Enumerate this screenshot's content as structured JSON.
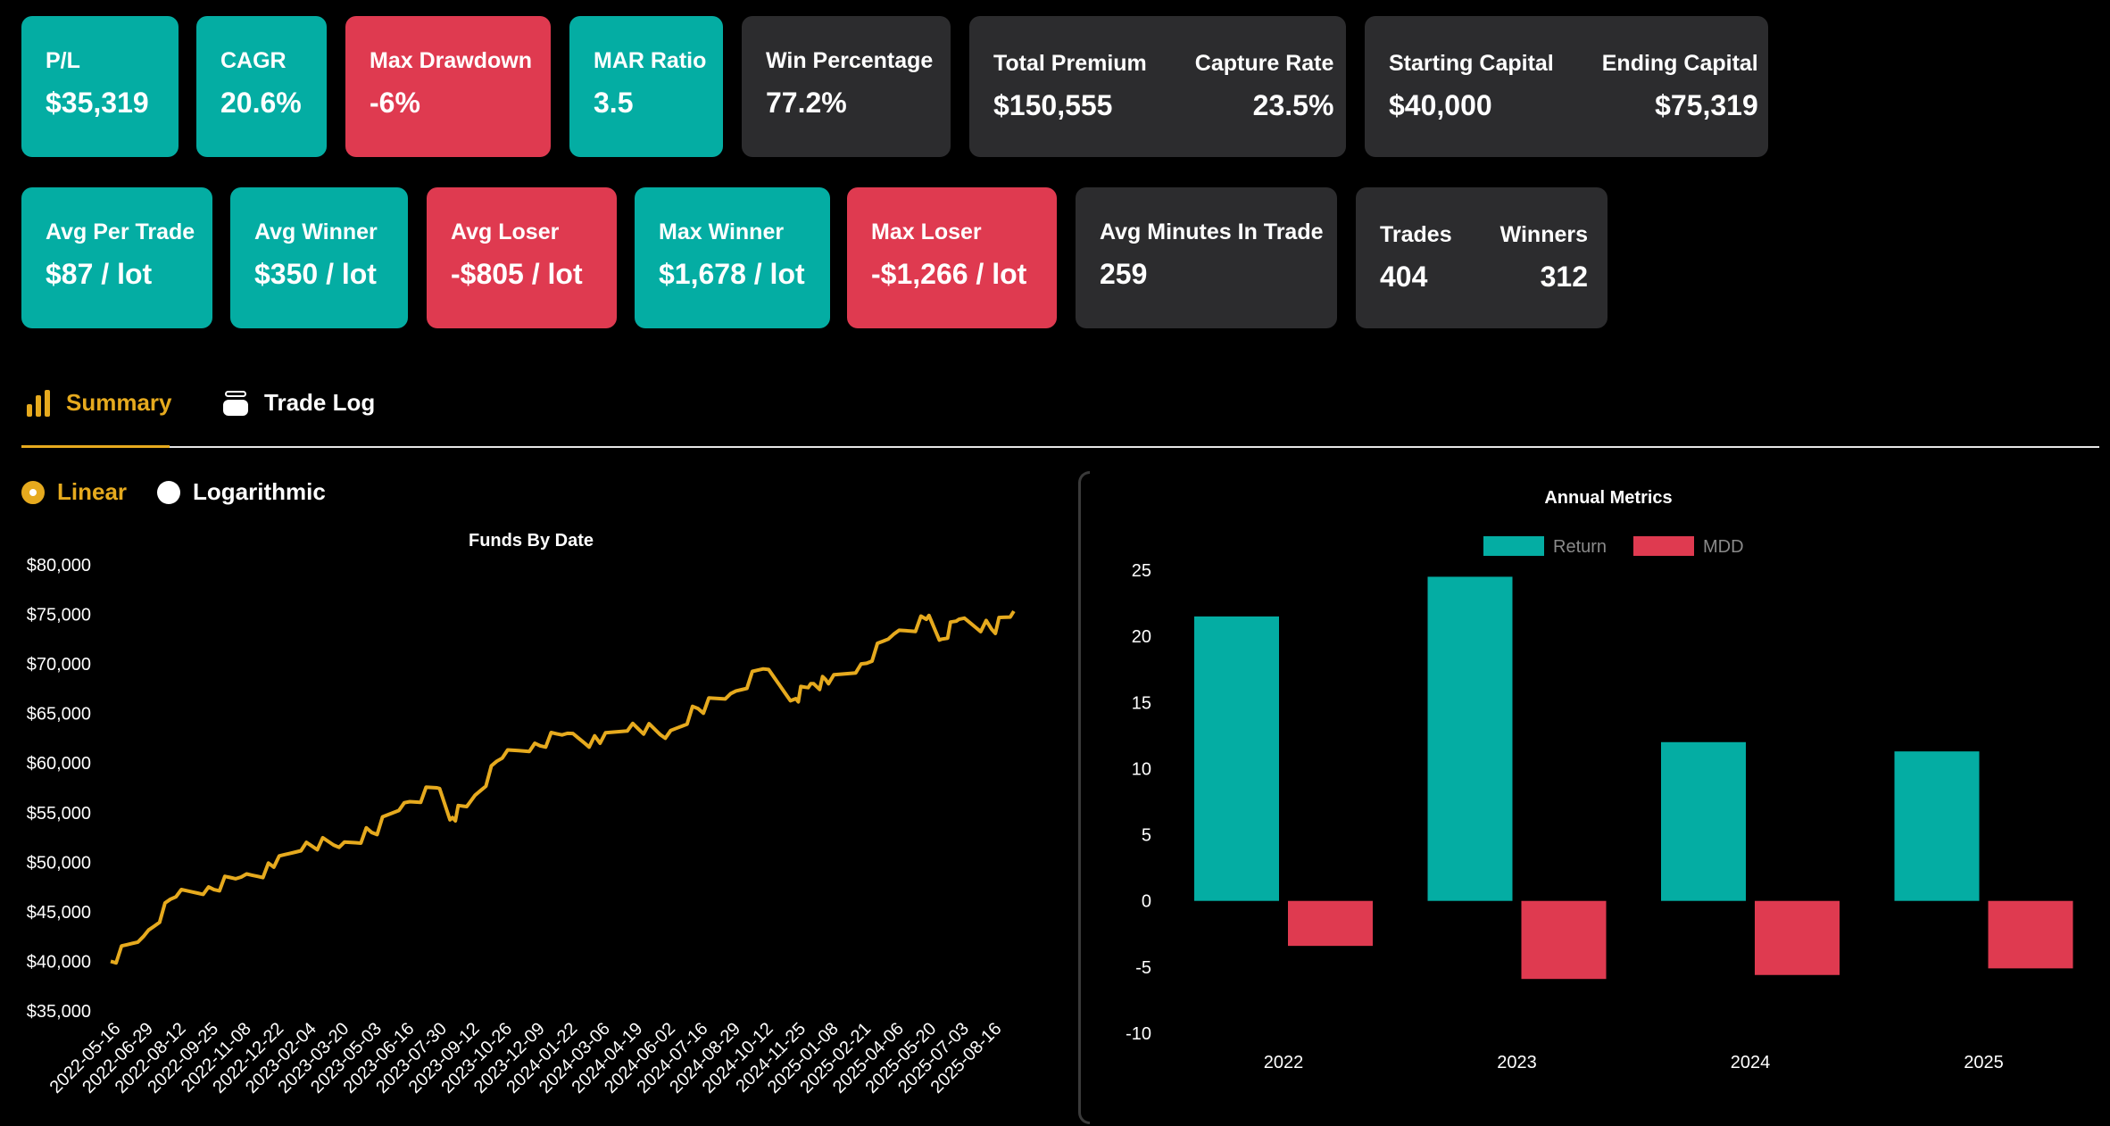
{
  "stats_row1": [
    {
      "label": "P/L",
      "value": "$35,319",
      "color": "#04ada3"
    },
    {
      "label": "CAGR",
      "value": "20.6%",
      "color": "#04ada3"
    },
    {
      "label": "Max Drawdown",
      "value": "-6%",
      "color": "#df3a50"
    },
    {
      "label": "MAR Ratio",
      "value": "3.5",
      "color": "#04ada3"
    },
    {
      "label": "Win Percentage",
      "value": "77.2%",
      "color": "#2c2c2e"
    }
  ],
  "split_cards": {
    "premium": {
      "left_label": "Total Premium",
      "left_value": "$150,555",
      "right_label": "Capture Rate",
      "right_value": "23.5%"
    },
    "capital": {
      "left_label": "Starting Capital",
      "left_value": "$40,000",
      "right_label": "Ending Capital",
      "right_value": "$75,319"
    },
    "trades": {
      "left_label": "Trades",
      "left_value": "404",
      "right_label": "Winners",
      "right_value": "312"
    }
  },
  "stats_row2": [
    {
      "label": "Avg Per Trade",
      "value": "$87 / lot",
      "color": "#04ada3"
    },
    {
      "label": "Avg Winner",
      "value": "$350 / lot",
      "color": "#04ada3"
    },
    {
      "label": "Avg Loser",
      "value": "-$805 / lot",
      "color": "#df3a50"
    },
    {
      "label": "Max Winner",
      "value": "$1,678 / lot",
      "color": "#04ada3"
    },
    {
      "label": "Max Loser",
      "value": "-$1,266 / lot",
      "color": "#df3a50"
    },
    {
      "label": "Avg Minutes In Trade",
      "value": "259",
      "color": "#2c2c2e"
    }
  ],
  "tabs": [
    {
      "label": "Summary",
      "icon": "bar-chart-icon",
      "active": true
    },
    {
      "label": "Trade Log",
      "icon": "coin-stack-icon",
      "active": false
    }
  ],
  "scale_options": [
    {
      "label": "Linear",
      "selected": true
    },
    {
      "label": "Logarithmic",
      "selected": false
    }
  ],
  "chart_data": [
    {
      "type": "line",
      "title": "Funds By Date",
      "color": "#e6aa1e",
      "ylim": [
        35000,
        80000
      ],
      "y_ticks": [
        "$35,000",
        "$40,000",
        "$45,000",
        "$50,000",
        "$55,000",
        "$60,000",
        "$65,000",
        "$70,000",
        "$75,000",
        "$80,000"
      ],
      "x_ticks": [
        "2022-05-16",
        "2022-06-29",
        "2022-08-12",
        "2022-09-25",
        "2022-11-08",
        "2022-12-22",
        "2023-02-04",
        "2023-03-20",
        "2023-05-03",
        "2023-06-16",
        "2023-07-30",
        "2023-09-12",
        "2023-10-26",
        "2023-12-09",
        "2024-01-22",
        "2024-03-06",
        "2024-04-19",
        "2024-06-02",
        "2024-07-16",
        "2024-08-29",
        "2024-10-12",
        "2024-11-25",
        "2025-01-08",
        "2025-02-21",
        "2025-04-06",
        "2025-05-20",
        "2025-07-03",
        "2025-08-16"
      ],
      "x": [
        "2022-05-16",
        "2022-06-29",
        "2022-08-12",
        "2022-09-25",
        "2022-11-08",
        "2022-12-22",
        "2023-02-04",
        "2023-03-20",
        "2023-05-03",
        "2023-06-16",
        "2023-07-30",
        "2023-08-20",
        "2023-09-12",
        "2023-10-26",
        "2023-12-09",
        "2024-01-22",
        "2024-03-06",
        "2024-04-19",
        "2024-06-02",
        "2024-07-16",
        "2024-08-29",
        "2024-10-12",
        "2024-11-25",
        "2024-12-15",
        "2025-01-08",
        "2025-02-21",
        "2025-04-06",
        "2025-05-20",
        "2025-06-10",
        "2025-07-03",
        "2025-08-16",
        "2025-09-15"
      ],
      "values": [
        40000,
        42500,
        46500,
        47500,
        48500,
        49500,
        52000,
        51500,
        53000,
        56000,
        57500,
        54500,
        56000,
        60500,
        62000,
        63000,
        62000,
        64000,
        62500,
        65500,
        67000,
        69500,
        66500,
        68000,
        68000,
        70000,
        73000,
        74500,
        72500,
        74500,
        73500,
        75319
      ]
    },
    {
      "type": "bar",
      "title": "Annual Metrics",
      "categories": [
        "2022",
        "2023",
        "2024",
        "2025"
      ],
      "ylim": [
        -10,
        25
      ],
      "y_ticks": [
        "-10",
        "-5",
        "0",
        "5",
        "10",
        "15",
        "20",
        "25"
      ],
      "series": [
        {
          "name": "Return",
          "color": "#04ada3",
          "values": [
            21.5,
            24.5,
            12,
            11.3
          ]
        },
        {
          "name": "MDD",
          "color": "#df3a50",
          "values": [
            -3.4,
            -5.9,
            -5.6,
            -5.1
          ]
        }
      ]
    }
  ]
}
